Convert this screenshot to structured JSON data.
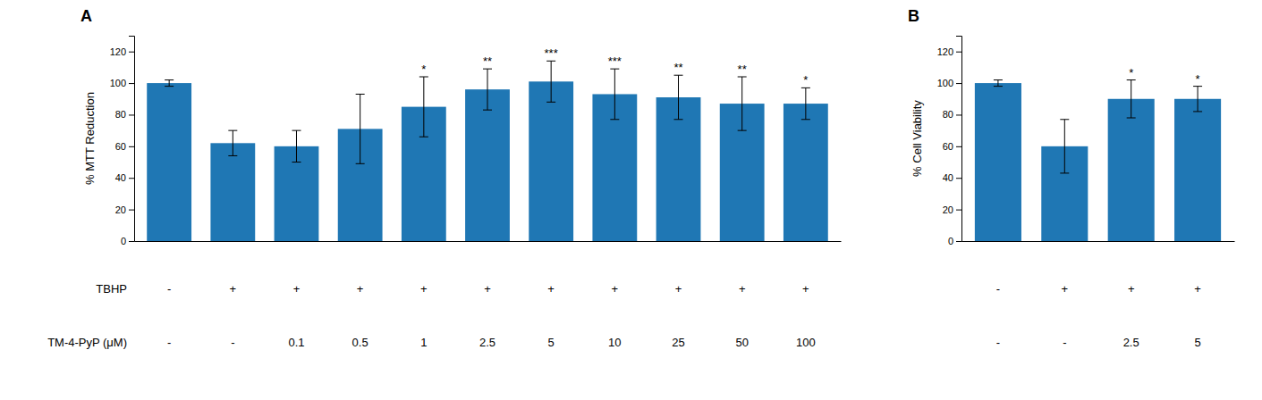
{
  "chart_data": [
    {
      "type": "bar",
      "title": "A",
      "y_label": "% MTT Reduction",
      "categories": [
        null,
        null,
        null,
        null,
        null,
        null,
        null,
        null,
        null,
        null,
        null
      ],
      "values": [
        100,
        62,
        60,
        71,
        85,
        96,
        101,
        93,
        91,
        87,
        87
      ],
      "errors": [
        2,
        8,
        10,
        22,
        19,
        13,
        13,
        16,
        14,
        17,
        10
      ],
      "significance": [
        null,
        null,
        null,
        null,
        "*",
        "**",
        "***",
        "***",
        "**",
        "**",
        "*"
      ],
      "rows": [
        {
          "name": "TBHP",
          "labels": [
            "-",
            "+",
            "+",
            "+",
            "+",
            "+",
            "+",
            "+",
            "+",
            "+",
            "+"
          ]
        },
        {
          "name": "TM-4-PyP (μM)",
          "labels": [
            "-",
            "-",
            "0.1",
            "0.5",
            "1",
            "2.5",
            "5",
            "10",
            "25",
            "50",
            "100"
          ]
        }
      ],
      "ylim": [
        0,
        130
      ],
      "yticks": [
        0,
        20,
        40,
        60,
        80,
        100,
        120
      ],
      "tick_labels": "y"
    },
    {
      "type": "bar",
      "title": "B",
      "y_label": "% Cell Viability",
      "categories": [
        null,
        null,
        null,
        null
      ],
      "values": [
        100,
        60,
        90,
        90
      ],
      "errors": [
        2,
        17,
        12,
        8
      ],
      "significance": [
        null,
        null,
        "*",
        "*"
      ],
      "rows": [
        {
          "labels": [
            "-",
            "+",
            "+",
            "+"
          ]
        },
        {
          "labels": [
            "-",
            "-",
            "2.5",
            "5"
          ]
        }
      ],
      "ylim": [
        0,
        130
      ],
      "yticks": [
        0,
        20,
        40,
        60,
        80,
        100,
        120
      ],
      "tick_labels": "y"
    }
  ]
}
